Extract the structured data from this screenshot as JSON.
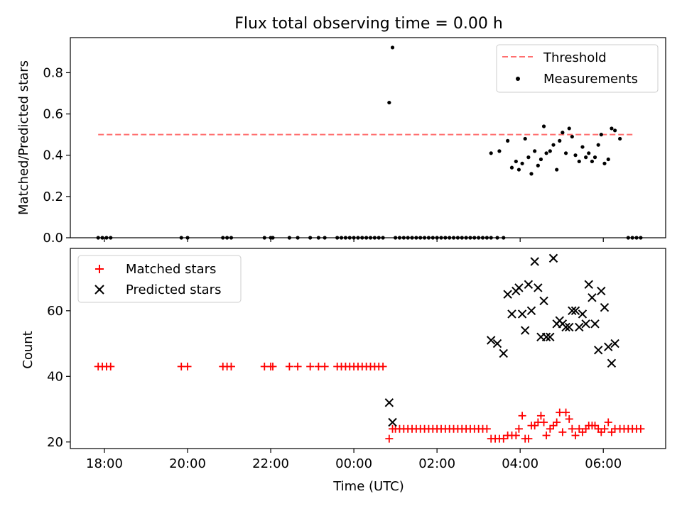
{
  "chart_data": {
    "type": "scatter",
    "title": "Flux total observing time = 0.00 h",
    "xlabel": "Time (UTC)",
    "x_ticks": [
      "18:00",
      "20:00",
      "22:00",
      "00:00",
      "02:00",
      "04:00",
      "06:00"
    ],
    "x_tick_hours": [
      0,
      2,
      4,
      6,
      8,
      10,
      12
    ],
    "x_note": "x values are hours after 18:00 UTC",
    "x_range": [
      -0.82,
      13.5
    ],
    "top": {
      "ylabel": "Matched/Predicted stars",
      "ylim": [
        0,
        0.97
      ],
      "yticks": [
        0.0,
        0.2,
        0.4,
        0.6,
        0.8
      ],
      "ytick_labels": [
        "0.0",
        "0.2",
        "0.4",
        "0.6",
        "0.8"
      ],
      "legend_position": "top-right",
      "threshold": {
        "name": "Threshold",
        "value": 0.5,
        "x": [
          -0.15,
          12.75
        ],
        "color": "#ff6f6f"
      },
      "measurements": {
        "name": "Measurements",
        "color": "#000000",
        "points": [
          [
            -0.15,
            0
          ],
          [
            -0.05,
            0
          ],
          [
            0.05,
            0
          ],
          [
            0.15,
            0
          ],
          [
            1.85,
            0
          ],
          [
            2.0,
            0
          ],
          [
            2.85,
            0
          ],
          [
            2.95,
            0
          ],
          [
            3.05,
            0
          ],
          [
            3.85,
            0
          ],
          [
            4.0,
            0
          ],
          [
            4.05,
            0
          ],
          [
            4.45,
            0
          ],
          [
            4.65,
            0
          ],
          [
            4.95,
            0
          ],
          [
            5.15,
            0
          ],
          [
            5.3,
            0
          ],
          [
            5.6,
            0
          ],
          [
            5.7,
            0
          ],
          [
            5.8,
            0
          ],
          [
            5.9,
            0
          ],
          [
            6.0,
            0
          ],
          [
            6.1,
            0
          ],
          [
            6.2,
            0
          ],
          [
            6.3,
            0
          ],
          [
            6.4,
            0
          ],
          [
            6.5,
            0
          ],
          [
            6.6,
            0
          ],
          [
            6.7,
            0
          ],
          [
            6.85,
            0.655
          ],
          [
            6.93,
            0.922
          ],
          [
            7.0,
            0
          ],
          [
            7.1,
            0
          ],
          [
            7.2,
            0
          ],
          [
            7.3,
            0
          ],
          [
            7.4,
            0
          ],
          [
            7.5,
            0
          ],
          [
            7.6,
            0
          ],
          [
            7.7,
            0
          ],
          [
            7.8,
            0
          ],
          [
            7.9,
            0
          ],
          [
            8.0,
            0
          ],
          [
            8.1,
            0
          ],
          [
            8.2,
            0
          ],
          [
            8.3,
            0
          ],
          [
            8.4,
            0
          ],
          [
            8.5,
            0
          ],
          [
            8.6,
            0
          ],
          [
            8.7,
            0
          ],
          [
            8.8,
            0
          ],
          [
            8.9,
            0
          ],
          [
            9.0,
            0
          ],
          [
            9.1,
            0
          ],
          [
            9.2,
            0
          ],
          [
            9.3,
            0
          ],
          [
            9.45,
            0
          ],
          [
            9.6,
            0
          ],
          [
            9.3,
            0.41
          ],
          [
            9.5,
            0.42
          ],
          [
            9.7,
            0.47
          ],
          [
            9.8,
            0.34
          ],
          [
            9.9,
            0.37
          ],
          [
            9.97,
            0.33
          ],
          [
            10.05,
            0.36
          ],
          [
            10.12,
            0.48
          ],
          [
            10.2,
            0.39
          ],
          [
            10.27,
            0.31
          ],
          [
            10.35,
            0.42
          ],
          [
            10.43,
            0.35
          ],
          [
            10.5,
            0.38
          ],
          [
            10.57,
            0.54
          ],
          [
            10.63,
            0.41
          ],
          [
            10.72,
            0.42
          ],
          [
            10.8,
            0.45
          ],
          [
            10.88,
            0.33
          ],
          [
            10.95,
            0.47
          ],
          [
            11.02,
            0.51
          ],
          [
            11.1,
            0.41
          ],
          [
            11.18,
            0.53
          ],
          [
            11.25,
            0.49
          ],
          [
            11.33,
            0.4
          ],
          [
            11.42,
            0.37
          ],
          [
            11.5,
            0.44
          ],
          [
            11.58,
            0.39
          ],
          [
            11.65,
            0.41
          ],
          [
            11.73,
            0.37
          ],
          [
            11.8,
            0.39
          ],
          [
            11.88,
            0.45
          ],
          [
            11.95,
            0.5
          ],
          [
            12.03,
            0.36
          ],
          [
            12.12,
            0.38
          ],
          [
            12.2,
            0.53
          ],
          [
            12.28,
            0.52
          ],
          [
            12.4,
            0.48
          ],
          [
            12.6,
            0
          ],
          [
            12.7,
            0
          ],
          [
            12.8,
            0
          ],
          [
            12.9,
            0
          ]
        ]
      }
    },
    "bottom": {
      "ylabel": "Count",
      "ylim": [
        18,
        79
      ],
      "yticks": [
        20,
        40,
        60
      ],
      "ytick_labels": [
        "20",
        "40",
        "60"
      ],
      "legend_position": "top-left",
      "matched": {
        "name": "Matched stars",
        "color": "#ff0000",
        "points": [
          [
            -0.15,
            43
          ],
          [
            -0.05,
            43
          ],
          [
            0.05,
            43
          ],
          [
            0.15,
            43
          ],
          [
            1.85,
            43
          ],
          [
            2.0,
            43
          ],
          [
            2.85,
            43
          ],
          [
            2.95,
            43
          ],
          [
            3.05,
            43
          ],
          [
            3.85,
            43
          ],
          [
            4.0,
            43
          ],
          [
            4.05,
            43
          ],
          [
            4.45,
            43
          ],
          [
            4.65,
            43
          ],
          [
            4.95,
            43
          ],
          [
            5.15,
            43
          ],
          [
            5.3,
            43
          ],
          [
            5.6,
            43
          ],
          [
            5.7,
            43
          ],
          [
            5.8,
            43
          ],
          [
            5.9,
            43
          ],
          [
            6.0,
            43
          ],
          [
            6.1,
            43
          ],
          [
            6.2,
            43
          ],
          [
            6.3,
            43
          ],
          [
            6.4,
            43
          ],
          [
            6.5,
            43
          ],
          [
            6.6,
            43
          ],
          [
            6.7,
            43
          ],
          [
            6.85,
            21
          ],
          [
            6.93,
            24
          ],
          [
            7.0,
            24
          ],
          [
            7.1,
            24
          ],
          [
            7.2,
            24
          ],
          [
            7.3,
            24
          ],
          [
            7.4,
            24
          ],
          [
            7.5,
            24
          ],
          [
            7.6,
            24
          ],
          [
            7.7,
            24
          ],
          [
            7.8,
            24
          ],
          [
            7.9,
            24
          ],
          [
            8.0,
            24
          ],
          [
            8.1,
            24
          ],
          [
            8.2,
            24
          ],
          [
            8.3,
            24
          ],
          [
            8.4,
            24
          ],
          [
            8.5,
            24
          ],
          [
            8.6,
            24
          ],
          [
            8.7,
            24
          ],
          [
            8.8,
            24
          ],
          [
            8.9,
            24
          ],
          [
            9.0,
            24
          ],
          [
            9.1,
            24
          ],
          [
            9.2,
            24
          ],
          [
            9.3,
            21
          ],
          [
            9.4,
            21
          ],
          [
            9.5,
            21
          ],
          [
            9.6,
            21
          ],
          [
            9.7,
            22
          ],
          [
            9.8,
            22
          ],
          [
            9.9,
            22
          ],
          [
            9.97,
            24
          ],
          [
            10.05,
            28
          ],
          [
            10.12,
            21
          ],
          [
            10.2,
            21
          ],
          [
            10.27,
            25
          ],
          [
            10.35,
            25
          ],
          [
            10.43,
            26
          ],
          [
            10.5,
            28
          ],
          [
            10.57,
            26
          ],
          [
            10.63,
            22
          ],
          [
            10.72,
            24
          ],
          [
            10.8,
            25
          ],
          [
            10.88,
            26
          ],
          [
            10.95,
            29
          ],
          [
            11.02,
            23
          ],
          [
            11.1,
            29
          ],
          [
            11.18,
            27
          ],
          [
            11.25,
            24
          ],
          [
            11.33,
            22
          ],
          [
            11.42,
            24
          ],
          [
            11.5,
            23
          ],
          [
            11.58,
            24
          ],
          [
            11.65,
            25
          ],
          [
            11.73,
            25
          ],
          [
            11.8,
            25
          ],
          [
            11.88,
            24
          ],
          [
            11.95,
            23
          ],
          [
            12.03,
            24
          ],
          [
            12.12,
            26
          ],
          [
            12.2,
            23
          ],
          [
            12.28,
            24
          ],
          [
            12.4,
            24
          ],
          [
            12.5,
            24
          ],
          [
            12.6,
            24
          ],
          [
            12.7,
            24
          ],
          [
            12.8,
            24
          ],
          [
            12.9,
            24
          ]
        ]
      },
      "predicted": {
        "name": "Predicted stars",
        "color": "#000000",
        "points": [
          [
            6.85,
            32
          ],
          [
            6.93,
            26
          ],
          [
            9.3,
            51
          ],
          [
            9.45,
            50
          ],
          [
            9.6,
            47
          ],
          [
            9.7,
            65
          ],
          [
            9.8,
            59
          ],
          [
            9.9,
            66
          ],
          [
            9.97,
            67
          ],
          [
            10.05,
            59
          ],
          [
            10.12,
            54
          ],
          [
            10.2,
            68
          ],
          [
            10.27,
            60
          ],
          [
            10.35,
            75
          ],
          [
            10.43,
            67
          ],
          [
            10.5,
            52
          ],
          [
            10.57,
            63
          ],
          [
            10.63,
            52
          ],
          [
            10.72,
            52
          ],
          [
            10.8,
            76
          ],
          [
            10.88,
            56
          ],
          [
            10.95,
            57
          ],
          [
            11.02,
            56
          ],
          [
            11.1,
            55
          ],
          [
            11.18,
            55
          ],
          [
            11.25,
            60
          ],
          [
            11.33,
            60
          ],
          [
            11.42,
            55
          ],
          [
            11.5,
            59
          ],
          [
            11.58,
            56
          ],
          [
            11.65,
            68
          ],
          [
            11.73,
            64
          ],
          [
            11.8,
            56
          ],
          [
            11.88,
            48
          ],
          [
            11.95,
            66
          ],
          [
            12.03,
            61
          ],
          [
            12.12,
            49
          ],
          [
            12.2,
            44
          ],
          [
            12.28,
            50
          ]
        ]
      }
    }
  }
}
